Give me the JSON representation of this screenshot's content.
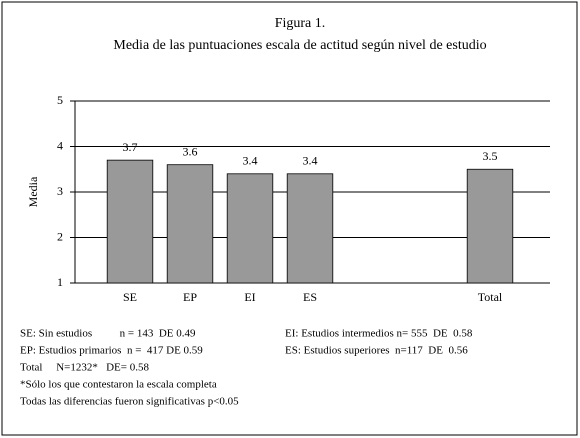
{
  "chart_data": {
    "type": "bar",
    "title": "Figura 1.",
    "subtitle": "Media de las puntuaciones escala de actitud según nivel de estudio",
    "y_label": "Media",
    "categories": [
      "SE",
      "EP",
      "EI",
      "ES",
      null,
      null,
      "Total"
    ],
    "values": [
      3.7,
      3.6,
      3.4,
      3.4,
      null,
      null,
      3.5
    ],
    "color": "#999999",
    "ylim": [
      1,
      5
    ],
    "yticks": [
      1,
      2,
      3,
      4,
      5
    ],
    "grid": true,
    "notes": [
      [
        "SE: Sin estudios          n = 143  DE 0.49",
        "EI: Estudios intermedios n= 555  DE  0.58"
      ],
      [
        "EP: Estudios primarios  n =  417 DE 0.59",
        "ES: Estudios superiores  n=117  DE  0.56"
      ],
      [
        "Total     N=1232*   DE= 0.58"
      ],
      [
        "*Sólo los que contestaron la escala completa"
      ],
      [
        "Todas las diferencias fueron significativas p<0.05"
      ]
    ]
  }
}
